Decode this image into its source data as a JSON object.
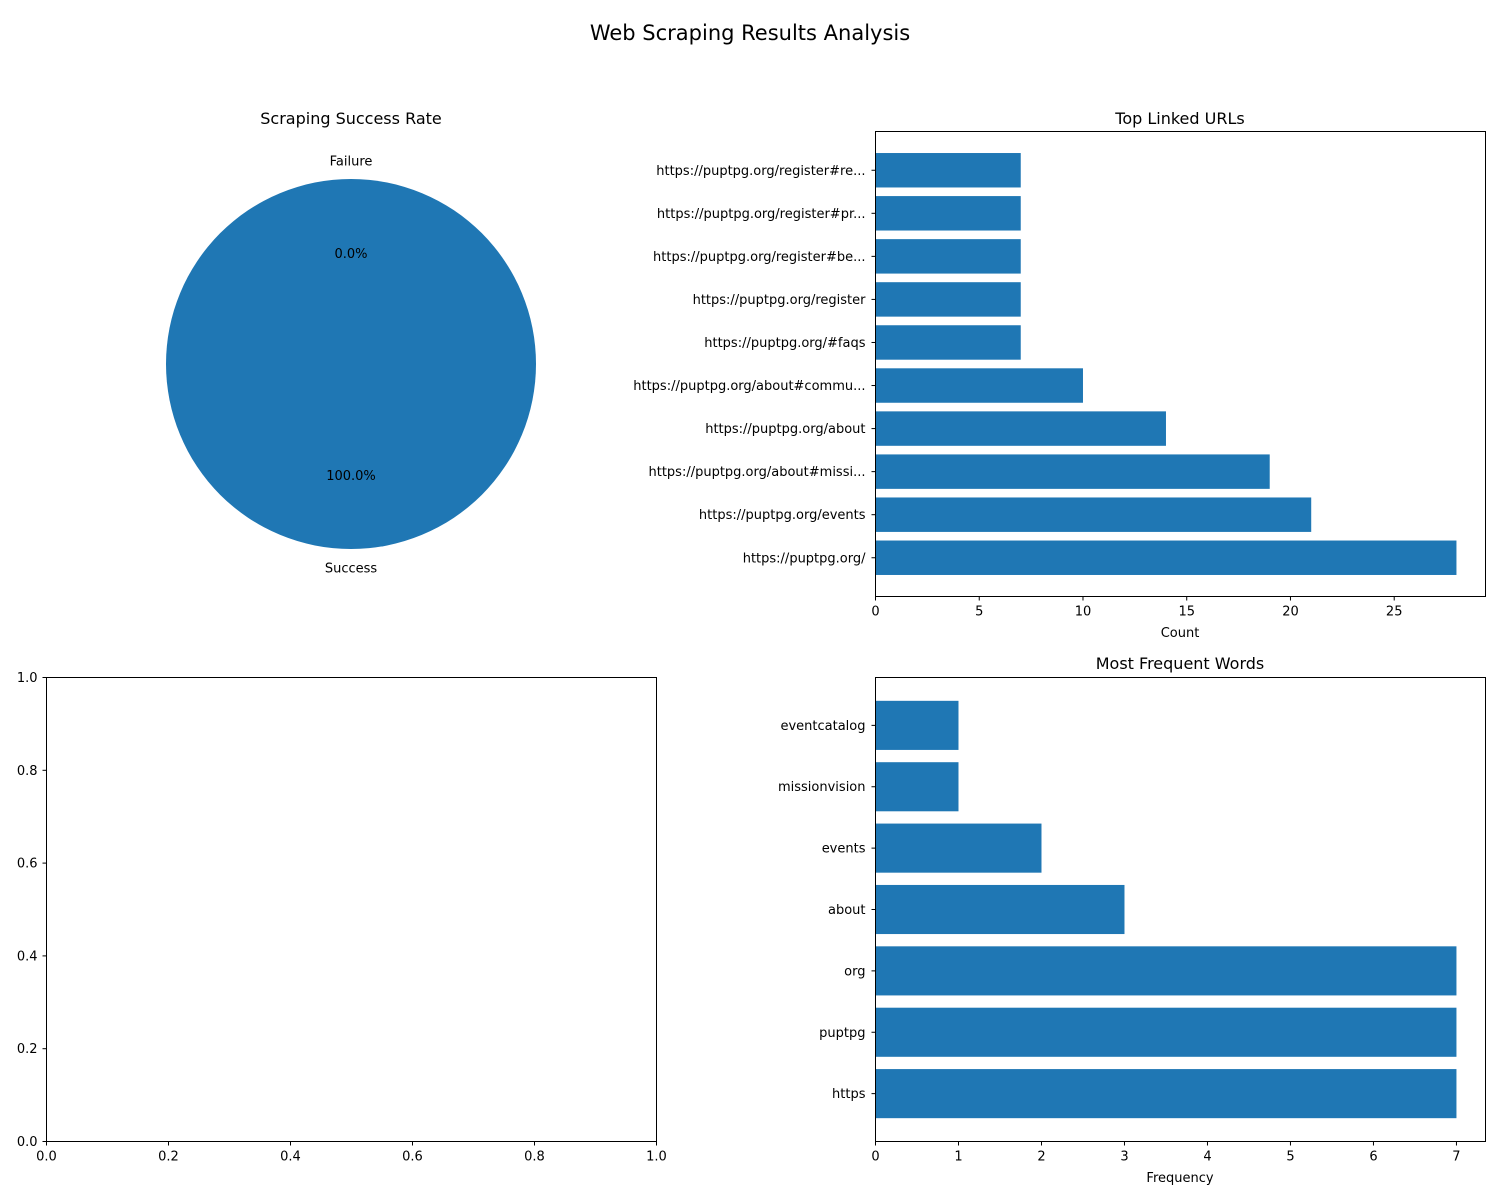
{
  "figure_title": "Web Scraping Results Analysis",
  "accent_color": "#1f77b4",
  "chart_data": [
    {
      "type": "pie",
      "title": "Scraping Success Rate",
      "labels": [
        "Success",
        "Failure"
      ],
      "values": [
        100.0,
        0.0
      ],
      "pct_labels": [
        "100.0%",
        "0.0%"
      ],
      "colors": [
        "#1f77b4",
        "#ff7f0e"
      ]
    },
    {
      "type": "bar",
      "orientation": "horizontal",
      "title": "Top Linked URLs",
      "xlabel": "Count",
      "ylabel": "",
      "categories": [
        "https://puptpg.org/",
        "https://puptpg.org/events",
        "https://puptpg.org/about#missi...",
        "https://puptpg.org/about",
        "https://puptpg.org/about#commu...",
        "https://puptpg.org/#faqs",
        "https://puptpg.org/register",
        "https://puptpg.org/register#be...",
        "https://puptpg.org/register#pr...",
        "https://puptpg.org/register#re..."
      ],
      "values": [
        28,
        21,
        19,
        14,
        10,
        7,
        7,
        7,
        7,
        7
      ],
      "xlim": [
        0,
        29.4
      ],
      "xticks": [
        0,
        5,
        10,
        15,
        20,
        25
      ]
    },
    {
      "type": "empty",
      "title": "",
      "xlim": [
        0,
        1
      ],
      "ylim": [
        0,
        1
      ],
      "xticks": [
        "0.0",
        "0.2",
        "0.4",
        "0.6",
        "0.8",
        "1.0"
      ],
      "yticks": [
        "0.0",
        "0.2",
        "0.4",
        "0.6",
        "0.8",
        "1.0"
      ]
    },
    {
      "type": "bar",
      "orientation": "horizontal",
      "title": "Most Frequent Words",
      "xlabel": "Frequency",
      "ylabel": "",
      "categories": [
        "https",
        "puptpg",
        "org",
        "about",
        "events",
        "missionvision",
        "eventcatalog"
      ],
      "values": [
        7,
        7,
        7,
        3,
        2,
        1,
        1
      ],
      "xlim": [
        0,
        7.35
      ],
      "xticks": [
        0,
        1,
        2,
        3,
        4,
        5,
        6,
        7
      ]
    }
  ]
}
